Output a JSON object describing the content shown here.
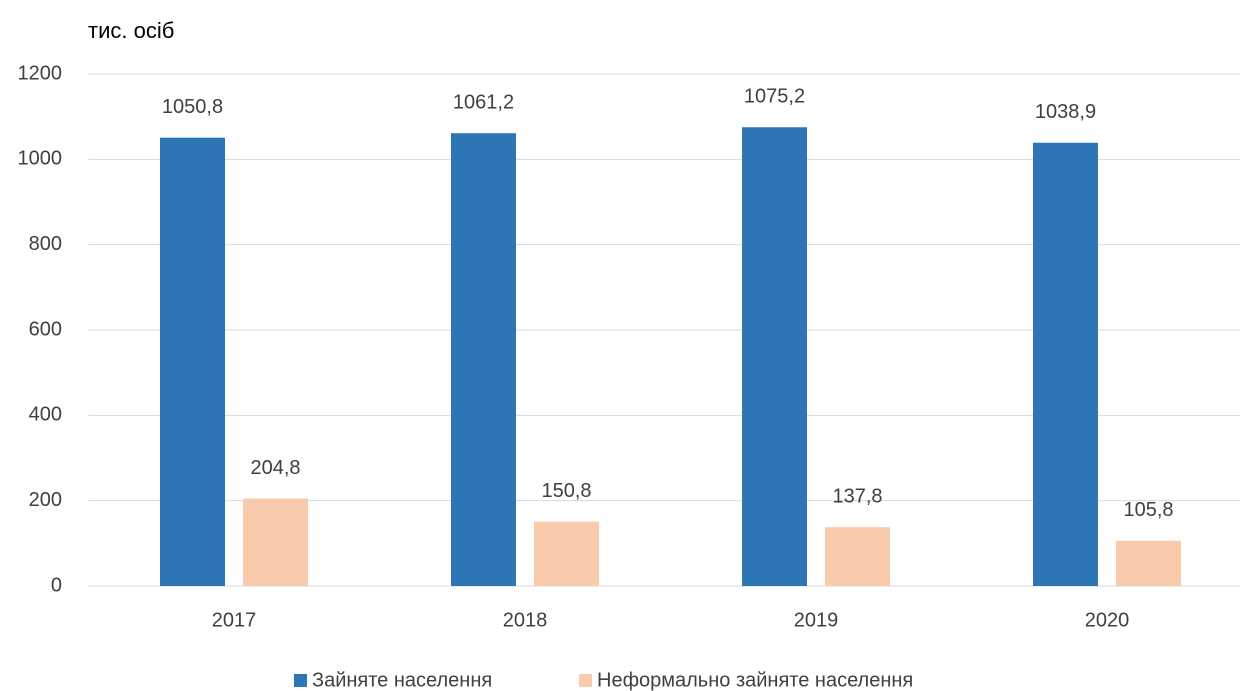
{
  "chart_data": {
    "type": "bar",
    "y_axis_label": "тис. осіб",
    "categories": [
      "2017",
      "2018",
      "2019",
      "2020"
    ],
    "series": [
      {
        "name": "Зайняте населення",
        "color": "#2e75b6",
        "values": [
          1050.8,
          1061.2,
          1075.2,
          1038.9
        ],
        "value_labels": [
          "1050,8",
          "1061,2",
          "1075,2",
          "1038,9"
        ]
      },
      {
        "name": "Неформально зайняте населення",
        "color": "#f8cbad",
        "values": [
          204.8,
          150.8,
          137.8,
          105.8
        ],
        "value_labels": [
          "204,8",
          "150,8",
          "137,8",
          "105,8"
        ]
      }
    ],
    "ylim": [
      0,
      1200
    ],
    "yticks": [
      0,
      200,
      400,
      600,
      800,
      1000,
      1200
    ],
    "grid": true,
    "legend": "bottom"
  }
}
